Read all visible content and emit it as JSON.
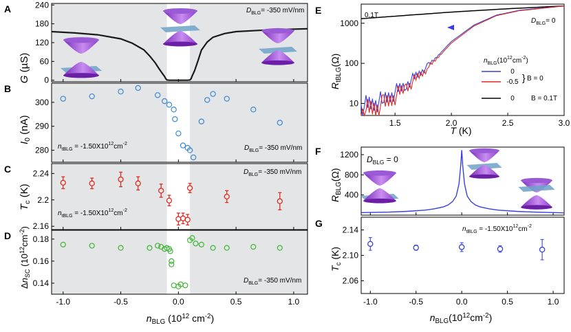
{
  "chart_data": [
    {
      "panel": "A",
      "type": "line",
      "ylabel": "G (µS)",
      "yticks": [
        0,
        60,
        120,
        180,
        240
      ],
      "ylim": [
        -5,
        245
      ],
      "xlim": [
        -1.1,
        1.12
      ],
      "annotation": "D_BLG = -350 mV/nm",
      "series": [
        {
          "x": [
            -1.1,
            -0.9,
            -0.7,
            -0.5,
            -0.4,
            -0.3,
            -0.25,
            -0.2,
            -0.17,
            -0.14,
            -0.12,
            -0.11,
            -0.1,
            -0.08,
            0.0,
            0.08,
            0.1,
            0.11,
            0.12,
            0.14,
            0.17,
            0.2,
            0.25,
            0.3,
            0.4,
            0.5,
            0.7,
            0.9,
            1.12
          ],
          "values": [
            155,
            151,
            145,
            132,
            118,
            97,
            78,
            55,
            38,
            22,
            12,
            5,
            1,
            0,
            0,
            0,
            1,
            5,
            14,
            30,
            62,
            96,
            122,
            137,
            149,
            155,
            159,
            162,
            164
          ]
        }
      ],
      "shaded_regions": [
        [
          -1.1,
          -0.1
        ],
        [
          0.1,
          1.12
        ]
      ]
    },
    {
      "panel": "B",
      "type": "scatter",
      "ylabel": "I0 (nA)",
      "yticks": [
        280,
        290,
        300
      ],
      "ylim": [
        275,
        308
      ],
      "xlim": [
        -1.1,
        1.12
      ],
      "annotation_left": "n_tBLG = -1.50X10^12 cm^-2",
      "annotation_right": "D_BLG = -350 mV/nm",
      "color": "#3a88d8",
      "x": [
        -1.0,
        -0.75,
        -0.5,
        -0.35,
        -0.18,
        -0.12,
        -0.08,
        -0.04,
        -0.03,
        0.0,
        0.04,
        0.08,
        0.1,
        0.13,
        0.2,
        0.25,
        0.3,
        0.42,
        0.65,
        0.88
      ],
      "values": [
        301.5,
        302.5,
        304.5,
        306,
        303,
        300.5,
        299,
        297,
        293,
        287,
        282,
        281,
        280,
        277,
        292,
        301,
        303.5,
        301.5,
        297,
        291.5
      ]
    },
    {
      "panel": "C",
      "type": "scatter",
      "ylabel": "Tc (K)",
      "yticks": [
        2.16,
        2.2,
        2.24
      ],
      "ylim": [
        2.155,
        2.255
      ],
      "xlim": [
        -1.1,
        1.12
      ],
      "annotation_left": "n_tBLG = -1.50X10^12 cm^-2",
      "annotation_right": "D_BLG = -350 mV/nm",
      "color": "#e02a1f",
      "x": [
        -1.0,
        -0.75,
        -0.5,
        -0.35,
        -0.15,
        -0.08,
        0.0,
        0.04,
        0.08,
        0.1,
        0.42,
        0.88
      ],
      "values": [
        2.226,
        2.225,
        2.231,
        2.225,
        2.214,
        2.199,
        2.171,
        2.172,
        2.17,
        2.218,
        2.205,
        2.198
      ],
      "errors": [
        0.009,
        0.008,
        0.011,
        0.01,
        0.01,
        0.008,
        0.009,
        0.008,
        0.008,
        0.007,
        0.009,
        0.013
      ]
    },
    {
      "panel": "D",
      "type": "scatter",
      "ylabel": "Δn_SC (10^12 cm^-2)",
      "yticks": [
        0.14,
        0.16,
        0.18
      ],
      "ylim": [
        0.13,
        0.188
      ],
      "xlim": [
        -1.1,
        1.12
      ],
      "annotation_right": "D_BLG = -350 mV/nm",
      "xlabel": "n_BLG (10^12 cm^-2)",
      "xticks": [
        -1.0,
        -0.5,
        0.0,
        0.5,
        1.0
      ],
      "color": "#3fb534",
      "x": [
        -1.0,
        -0.75,
        -0.5,
        -0.25,
        -0.18,
        -0.15,
        -0.12,
        -0.1,
        -0.08,
        -0.07,
        -0.06,
        -0.06,
        -0.04,
        0.0,
        0.02,
        0.06,
        0.1,
        0.12,
        0.15,
        0.2,
        0.3,
        0.42,
        0.65,
        0.88
      ],
      "values": [
        0.175,
        0.174,
        0.172,
        0.172,
        0.174,
        0.173,
        0.171,
        0.172,
        0.171,
        0.169,
        0.16,
        0.157,
        0.138,
        0.137,
        0.139,
        0.138,
        0.179,
        0.181,
        0.176,
        0.175,
        0.172,
        0.172,
        0.173,
        0.172
      ]
    },
    {
      "panel": "E",
      "type": "line",
      "ylabel": "R_tBLG (Ω)",
      "yscale": "log",
      "yticks": [
        10,
        100,
        1000
      ],
      "ylim": [
        5,
        3000
      ],
      "xlabel": "T (K)",
      "xticks": [
        1.5,
        2.0,
        2.5,
        3.0
      ],
      "xlim": [
        1.2,
        3.0
      ],
      "annotation_top": "0.1T",
      "annotation_right": "D_BLG = 0",
      "legend_title": "n_BLG (10^12 cm^-2)",
      "legend": [
        {
          "label": "0",
          "color": "#3640e0",
          "group": "B = 0"
        },
        {
          "label": "-0.5",
          "color": "#e02a1f",
          "group": "B = 0"
        },
        {
          "label": "0",
          "color": "#000000",
          "group": "B = 0.1T"
        }
      ],
      "series": [
        {
          "name": "0",
          "color": "#000000",
          "x": [
            1.2,
            1.5,
            2.0,
            2.5,
            3.0
          ],
          "values": [
            1300,
            1500,
            1900,
            2300,
            2700
          ]
        },
        {
          "name": "0",
          "color": "#3640e0",
          "x": [
            1.2,
            1.4,
            1.6,
            1.8,
            2.0,
            2.2,
            2.4,
            2.6,
            2.8,
            3.0
          ],
          "values": [
            8,
            12,
            30,
            90,
            350,
            900,
            1600,
            2100,
            2400,
            2700
          ]
        },
        {
          "name": "-0.5",
          "color": "#e02a1f",
          "x": [
            1.2,
            1.4,
            1.6,
            1.8,
            2.0,
            2.2,
            2.4,
            2.6,
            2.8,
            3.0
          ],
          "values": [
            6,
            9,
            25,
            80,
            320,
            850,
            1550,
            2050,
            2350,
            2700
          ]
        }
      ]
    },
    {
      "panel": "F",
      "type": "line",
      "ylabel": "R_BLG (Ω)",
      "yticks": [
        400,
        800,
        1200
      ],
      "ylim": [
        0,
        1350
      ],
      "xlim": [
        -1.1,
        1.12
      ],
      "annotation": "D_BLG = 0",
      "color": "#3640e0",
      "series": [
        {
          "x": [
            -1.1,
            -0.8,
            -0.6,
            -0.4,
            -0.3,
            -0.2,
            -0.15,
            -0.1,
            -0.06,
            -0.03,
            -0.01,
            0.0,
            0.01,
            0.03,
            0.06,
            0.1,
            0.15,
            0.2,
            0.3,
            0.4,
            0.6,
            0.8,
            1.12
          ],
          "values": [
            50,
            60,
            75,
            100,
            125,
            165,
            200,
            270,
            380,
            620,
            1000,
            1290,
            1000,
            620,
            380,
            270,
            200,
            165,
            125,
            100,
            75,
            60,
            45
          ]
        }
      ]
    },
    {
      "panel": "G",
      "type": "scatter",
      "ylabel": "Tc (K)",
      "yticks": [
        2.06,
        2.1,
        2.14
      ],
      "ylim": [
        2.04,
        2.16
      ],
      "xlim": [
        -1.1,
        1.12
      ],
      "xticks": [
        -1.0,
        -0.5,
        0.0,
        0.5,
        1.0
      ],
      "xlabel": "n_BLG (10^12 cm^-2)",
      "annotation": "n_tBLG = -1.50X10^12 cm^-2",
      "color": "#3640e0",
      "x": [
        -1.0,
        -0.5,
        0.0,
        0.42,
        0.88
      ],
      "values": [
        2.118,
        2.112,
        2.113,
        2.11,
        2.109
      ],
      "errors": [
        0.01,
        0.004,
        0.007,
        0.005,
        0.016
      ]
    }
  ],
  "labels": {
    "panel_A": "A",
    "panel_B": "B",
    "panel_C": "C",
    "panel_D": "D",
    "panel_E": "E",
    "panel_F": "F",
    "panel_G": "G"
  }
}
